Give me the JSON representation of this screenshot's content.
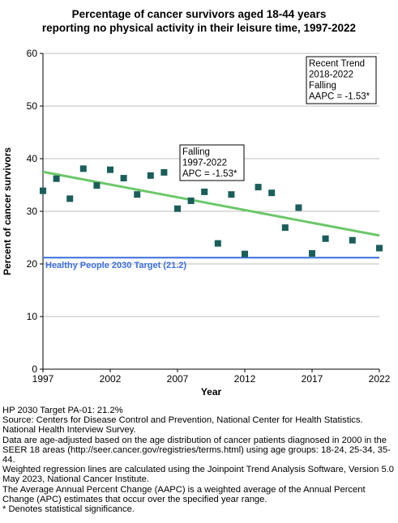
{
  "chart_data": {
    "type": "scatter",
    "title_lines": [
      "Percentage of cancer survivors aged 18-44 years",
      "reporting no physical activity in their leisure time, 1997-2022"
    ],
    "xlabel": "Year",
    "ylabel": "Percent of cancer survivors",
    "xlim": [
      1997,
      2022
    ],
    "ylim": [
      0,
      60
    ],
    "x_ticks": [
      1997,
      2002,
      2007,
      2012,
      2017,
      2022
    ],
    "y_ticks": [
      0,
      10,
      20,
      30,
      40,
      50,
      60
    ],
    "grid": "horizontal",
    "series": [
      {
        "kind": "observed-points",
        "color": "#1a5e5a",
        "marker": "square",
        "x": [
          1997,
          1998,
          1999,
          2000,
          2001,
          2002,
          2003,
          2004,
          2005,
          2006,
          2007,
          2008,
          2009,
          2010,
          2011,
          2012,
          2013,
          2014,
          2015,
          2016,
          2017,
          2018,
          2020,
          2022
        ],
        "y": [
          33.9,
          36.2,
          32.4,
          38.1,
          34.9,
          37.9,
          36.3,
          33.2,
          36.8,
          37.4,
          30.5,
          32.0,
          33.7,
          23.9,
          33.2,
          21.9,
          34.6,
          33.5,
          26.9,
          30.7,
          22.0,
          24.8,
          24.5,
          23.0
        ]
      },
      {
        "kind": "trend-line",
        "color": "#6cc76a",
        "x": [
          1997,
          2022
        ],
        "y": [
          37.5,
          25.4
        ]
      }
    ],
    "target": {
      "value": 21.2,
      "label": "Healthy People 2030 Target (21.2)",
      "color": "#3b6fdb"
    },
    "annotations": [
      {
        "id": "overall-trend",
        "lines": [
          "Falling",
          "1997-2022",
          "APC = -1.53*"
        ]
      },
      {
        "id": "recent-trend",
        "lines": [
          "Recent Trend",
          "2018-2022",
          "Falling",
          "AAPC = -1.53*"
        ]
      }
    ]
  },
  "footnotes": [
    "HP 2030 Target PA-01: 21.2%",
    "Source: Centers for Disease Control and Prevention, National Center for Health Statistics. National Health Interview Survey.",
    "Data are age-adjusted based on the age distribution of cancer patients diagnosed in 2000 in the SEER 18 areas (http://seer.cancer.gov/registries/terms.html) using age groups: 18-24, 25-34, 35-44.",
    "Weighted regression lines are calculated using the Joinpoint Trend Analysis Software, Version 5.0 May 2023, National Cancer Institute.",
    "The Average Annual Percent Change (AAPC) is a weighted average of the Annual Percent Change (APC) estimates that occur over the specified year range.",
    "* Denotes statistical significance."
  ]
}
